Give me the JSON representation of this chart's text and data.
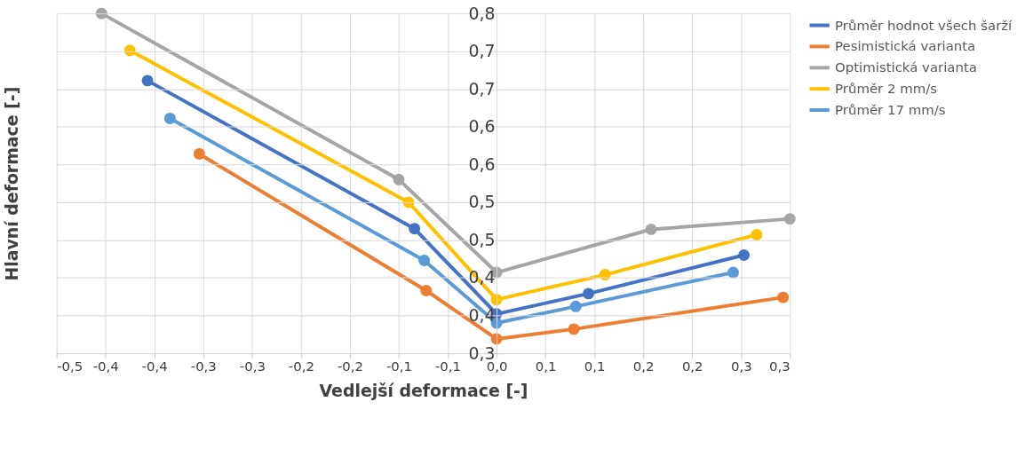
{
  "chart_data": {
    "type": "line",
    "xlabel": "Vedlejší deformace [-]",
    "ylabel": "Hlavní deformace [-]",
    "xlim": [
      -0.45,
      0.3
    ],
    "ylim": [
      0.3,
      0.75
    ],
    "xticks": [
      {
        "value": -0.45,
        "label": "-0,5"
      },
      {
        "value": -0.4,
        "label": "-0,4"
      },
      {
        "value": -0.35,
        "label": "-0,4"
      },
      {
        "value": -0.3,
        "label": "-0,3"
      },
      {
        "value": -0.25,
        "label": "-0,3"
      },
      {
        "value": -0.2,
        "label": "-0,2"
      },
      {
        "value": -0.15,
        "label": "-0,2"
      },
      {
        "value": -0.1,
        "label": "-0,1"
      },
      {
        "value": -0.05,
        "label": "-0,1"
      },
      {
        "value": 0,
        "label": "0,0"
      },
      {
        "value": 0.05,
        "label": "0,1"
      },
      {
        "value": 0.1,
        "label": "0,1"
      },
      {
        "value": 0.15,
        "label": "0,2"
      },
      {
        "value": 0.2,
        "label": "0,2"
      },
      {
        "value": 0.25,
        "label": "0,3"
      },
      {
        "value": 0.3,
        "label": "0,3"
      }
    ],
    "yticks": [
      {
        "value": 0.3,
        "label": "0,3"
      },
      {
        "value": 0.35,
        "label": "0,4"
      },
      {
        "value": 0.4,
        "label": "0,4"
      },
      {
        "value": 0.45,
        "label": "0,5"
      },
      {
        "value": 0.5,
        "label": "0,5"
      },
      {
        "value": 0.55,
        "label": "0,6"
      },
      {
        "value": 0.6,
        "label": "0,6"
      },
      {
        "value": 0.65,
        "label": "0,7"
      },
      {
        "value": 0.7,
        "label": "0,7"
      },
      {
        "value": 0.75,
        "label": "0,8"
      }
    ],
    "grid": true,
    "legend": "right",
    "marker": "circle",
    "line_style": "solid",
    "series": [
      {
        "name": "Průměr hodnot všech šarží",
        "color": "#4472c4",
        "x": [
          -0.357,
          -0.084,
          0,
          0.094,
          0.253
        ],
        "values": [
          0.661,
          0.465,
          0.352,
          0.379,
          0.43
        ]
      },
      {
        "name": "Pesimistická varianta",
        "color": "#ed7d31",
        "x": [
          -0.304,
          -0.072,
          0,
          0.079,
          0.293
        ],
        "values": [
          0.564,
          0.383,
          0.319,
          0.332,
          0.374
        ]
      },
      {
        "name": "Optimistická varianta",
        "color": "#a5a5a5",
        "x": [
          -0.404,
          -0.1,
          0,
          0.158,
          0.3
        ],
        "values": [
          0.75,
          0.53,
          0.407,
          0.464,
          0.478
        ]
      },
      {
        "name": "Průměr 2 mm/s",
        "color": "#ffc000",
        "x": [
          -0.375,
          -0.09,
          0,
          0.111,
          0.266
        ],
        "values": [
          0.701,
          0.5,
          0.371,
          0.404,
          0.457
        ]
      },
      {
        "name": "Průměr 17 mm/s",
        "color": "#5b9bd5",
        "x": [
          -0.334,
          -0.074,
          0,
          0.081,
          0.242
        ],
        "values": [
          0.611,
          0.423,
          0.34,
          0.362,
          0.407
        ]
      }
    ]
  }
}
